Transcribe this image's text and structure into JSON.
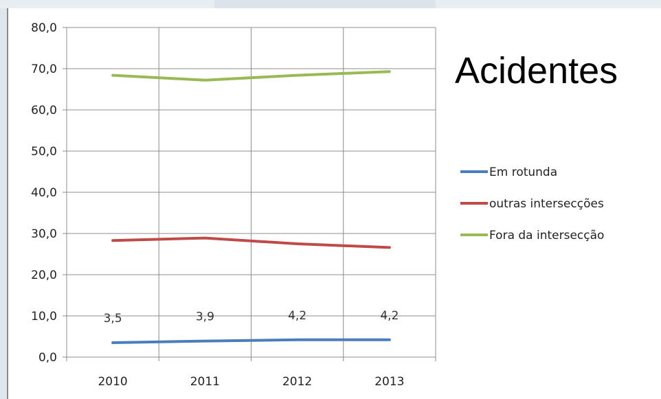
{
  "title": "Acidentes",
  "chart_data": {
    "type": "line",
    "title": "Acidentes",
    "xlabel": "",
    "ylabel": "",
    "categories": [
      "2010",
      "2011",
      "2012",
      "2013"
    ],
    "ylim": [
      0,
      80
    ],
    "yticks": [
      "0,0",
      "10,0",
      "20,0",
      "30,0",
      "40,0",
      "50,0",
      "60,0",
      "70,0",
      "80,0"
    ],
    "grid": true,
    "legend_position": "right",
    "series": [
      {
        "name": "Em rotunda",
        "color": "#4a7ebb",
        "values": [
          3.5,
          3.9,
          4.2,
          4.2
        ],
        "data_labels": [
          "3,5",
          "3,9",
          "4,2",
          "4,2"
        ]
      },
      {
        "name": "outras intersecções",
        "color": "#be4b48",
        "values": [
          28.3,
          28.9,
          27.5,
          26.6
        ]
      },
      {
        "name": "Fora da intersecção",
        "color": "#98b954",
        "values": [
          68.4,
          67.2,
          68.4,
          69.3
        ]
      }
    ]
  }
}
